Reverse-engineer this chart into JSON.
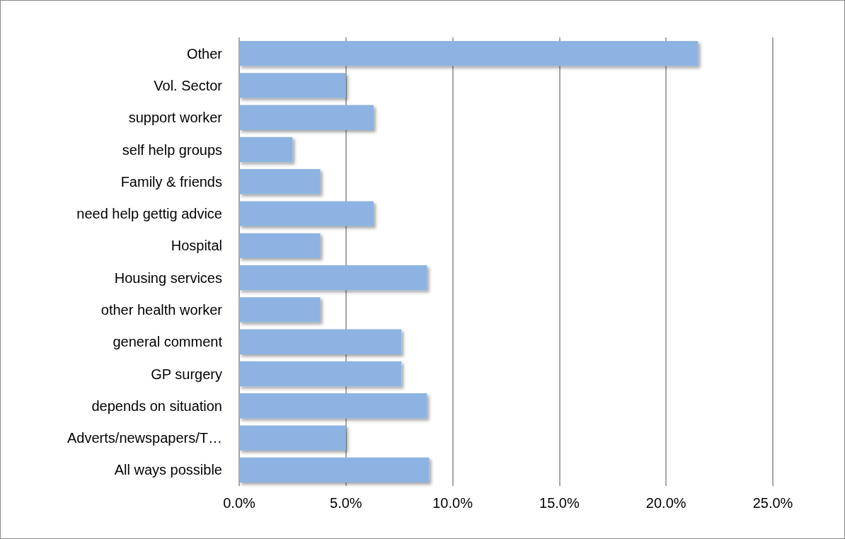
{
  "chart_data": {
    "type": "bar",
    "orientation": "horizontal",
    "categories": [
      "Other",
      "Vol. Sector",
      "support worker",
      "self help groups",
      "Family & friends",
      "need help gettig advice",
      "Hospital",
      "Housing services",
      "other health worker",
      "general comment",
      "GP surgery",
      "depends on situation",
      "Adverts/newspapers/T…",
      "All ways possible"
    ],
    "values": [
      21.5,
      5.0,
      6.3,
      2.5,
      3.8,
      6.3,
      3.8,
      8.8,
      3.8,
      7.6,
      7.6,
      8.8,
      5.0,
      8.9
    ],
    "color": "#8db3e2",
    "xlim": [
      0,
      25
    ],
    "xticks": [
      {
        "value": 0,
        "label": "0.0%"
      },
      {
        "value": 5,
        "label": "5.0%"
      },
      {
        "value": 10,
        "label": "10.0%"
      },
      {
        "value": 15,
        "label": "15.0%"
      },
      {
        "value": 20,
        "label": "20.0%"
      },
      {
        "value": 25,
        "label": "25.0%"
      }
    ],
    "grid": "x"
  }
}
